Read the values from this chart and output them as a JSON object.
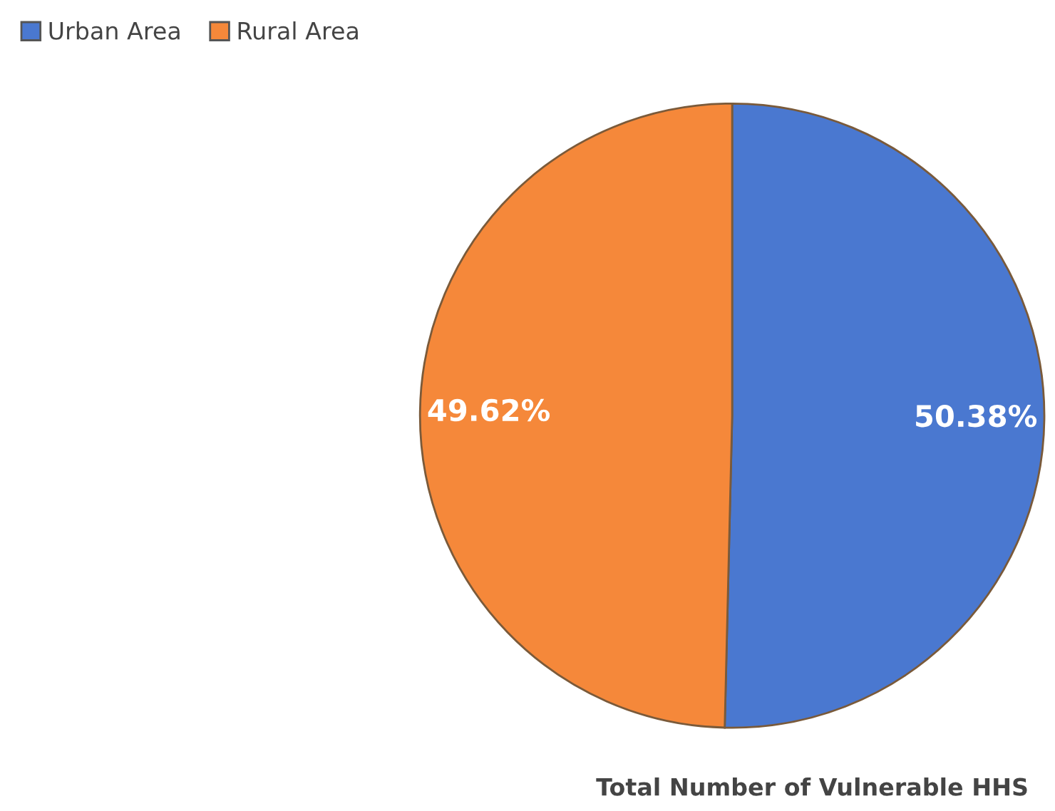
{
  "chart_data": {
    "type": "pie",
    "title": "Total Number of Vulnerable HHS",
    "categories": [
      "Urban Area",
      "Rural Area"
    ],
    "values": [
      50.38,
      49.62
    ],
    "colors": [
      "#4a78d0",
      "#f5883a"
    ],
    "value_labels": [
      "50.38%",
      "49.62%"
    ],
    "legend": "top left"
  }
}
